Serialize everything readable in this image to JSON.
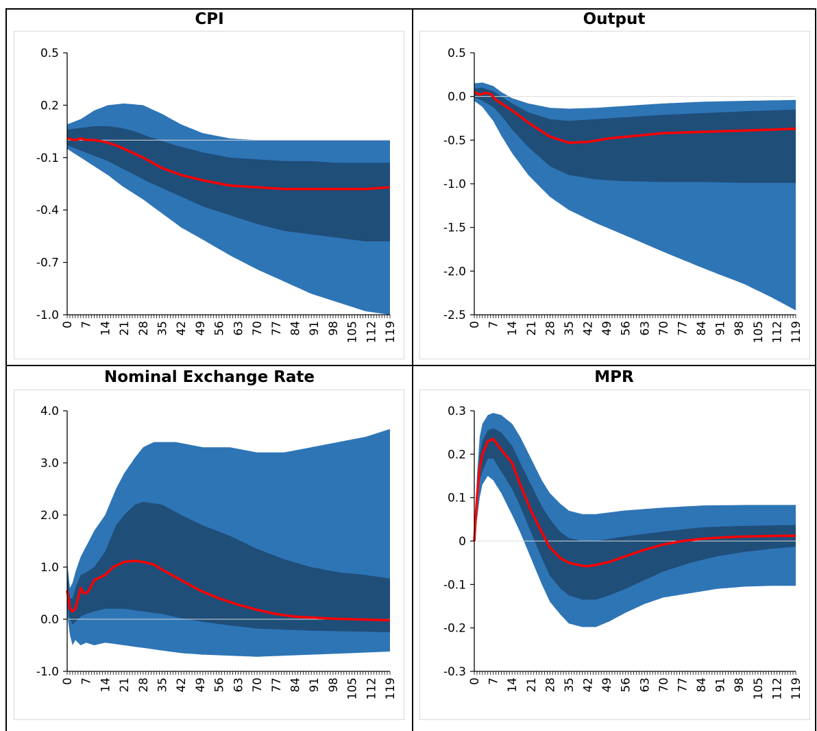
{
  "panels_layout": "2x2 table",
  "colors": {
    "outer_band": "#2e75b6",
    "inner_band": "#1f4e79",
    "median_line": "#ff0000",
    "zero_line": "#d9d9d9"
  },
  "chart_data": [
    {
      "type": "area",
      "title": "CPI",
      "xlabel": "",
      "ylabel": "",
      "x_range": [
        0,
        119
      ],
      "x_ticks": [
        0,
        7,
        14,
        21,
        28,
        35,
        42,
        49,
        56,
        63,
        70,
        77,
        84,
        91,
        98,
        105,
        112,
        119
      ],
      "ylim": [
        -1.0,
        0.5
      ],
      "y_ticks": [
        -1.0,
        -0.7,
        -0.4,
        -0.1,
        0.2,
        0.5
      ],
      "y_tick_labels": [
        "-1.0",
        "-0.7",
        "-0.4",
        "-0.1",
        "0.2",
        "0.5"
      ],
      "grid": false,
      "series": [
        {
          "role": "outer_upper",
          "x": [
            0,
            5,
            10,
            15,
            21,
            28,
            35,
            42,
            50,
            60,
            70,
            80,
            90,
            100,
            110,
            119
          ],
          "values": [
            0.09,
            0.12,
            0.17,
            0.2,
            0.21,
            0.2,
            0.15,
            0.09,
            0.04,
            0.01,
            0.0,
            0.0,
            0.0,
            0.0,
            0.0,
            0.0
          ]
        },
        {
          "role": "inner_upper",
          "x": [
            0,
            5,
            10,
            15,
            20,
            25,
            30,
            40,
            50,
            60,
            70,
            80,
            90,
            100,
            110,
            119
          ],
          "values": [
            0.06,
            0.07,
            0.08,
            0.08,
            0.07,
            0.05,
            0.02,
            -0.03,
            -0.07,
            -0.1,
            -0.11,
            -0.12,
            -0.12,
            -0.13,
            -0.13,
            -0.13
          ]
        },
        {
          "role": "median",
          "x": [
            0,
            3,
            5,
            7,
            10,
            14,
            18,
            21,
            28,
            35,
            42,
            50,
            60,
            70,
            80,
            90,
            100,
            110,
            119
          ],
          "values": [
            0.01,
            0.0,
            0.01,
            0.0,
            0.0,
            -0.01,
            -0.03,
            -0.05,
            -0.1,
            -0.16,
            -0.2,
            -0.23,
            -0.26,
            -0.27,
            -0.28,
            -0.28,
            -0.28,
            -0.28,
            -0.27
          ]
        },
        {
          "role": "inner_lower",
          "x": [
            0,
            5,
            10,
            15,
            20,
            25,
            30,
            40,
            50,
            60,
            70,
            80,
            90,
            100,
            110,
            119
          ],
          "values": [
            -0.03,
            -0.06,
            -0.09,
            -0.12,
            -0.16,
            -0.2,
            -0.24,
            -0.31,
            -0.38,
            -0.43,
            -0.48,
            -0.52,
            -0.54,
            -0.56,
            -0.58,
            -0.58
          ]
        },
        {
          "role": "outer_lower",
          "x": [
            0,
            5,
            10,
            15,
            20,
            28,
            35,
            42,
            50,
            60,
            70,
            80,
            90,
            100,
            110,
            119
          ],
          "values": [
            -0.05,
            -0.1,
            -0.15,
            -0.2,
            -0.26,
            -0.34,
            -0.42,
            -0.5,
            -0.57,
            -0.66,
            -0.74,
            -0.81,
            -0.88,
            -0.93,
            -0.98,
            -1.0
          ]
        }
      ]
    },
    {
      "type": "area",
      "title": "Output",
      "xlabel": "",
      "ylabel": "",
      "x_range": [
        0,
        119
      ],
      "x_ticks": [
        0,
        7,
        14,
        21,
        28,
        35,
        42,
        49,
        56,
        63,
        70,
        77,
        84,
        91,
        98,
        105,
        112,
        119
      ],
      "ylim": [
        -2.5,
        0.5
      ],
      "y_ticks": [
        -2.5,
        -2.0,
        -1.5,
        -1.0,
        -0.5,
        0.0,
        0.5
      ],
      "y_tick_labels": [
        "-2.5",
        "-2.0",
        "-1.5",
        "-1.0",
        "-0.5",
        "0.0",
        "0.5"
      ],
      "grid": false,
      "series": [
        {
          "role": "outer_upper",
          "x": [
            0,
            3,
            7,
            10,
            14,
            20,
            28,
            35,
            45,
            55,
            70,
            85,
            100,
            119
          ],
          "values": [
            0.15,
            0.16,
            0.12,
            0.05,
            -0.02,
            -0.08,
            -0.13,
            -0.14,
            -0.13,
            -0.11,
            -0.08,
            -0.06,
            -0.05,
            -0.04
          ]
        },
        {
          "role": "inner_upper",
          "x": [
            0,
            3,
            7,
            10,
            14,
            20,
            28,
            35,
            45,
            55,
            70,
            85,
            100,
            119
          ],
          "values": [
            0.09,
            0.1,
            0.06,
            0.0,
            -0.08,
            -0.18,
            -0.26,
            -0.28,
            -0.26,
            -0.24,
            -0.21,
            -0.19,
            -0.17,
            -0.15
          ]
        },
        {
          "role": "median",
          "x": [
            0,
            2,
            4,
            6,
            8,
            10,
            14,
            20,
            28,
            35,
            42,
            50,
            60,
            70,
            80,
            90,
            100,
            110,
            119
          ],
          "values": [
            0.05,
            0.02,
            0.04,
            0.03,
            -0.04,
            -0.08,
            -0.16,
            -0.3,
            -0.46,
            -0.53,
            -0.52,
            -0.48,
            -0.45,
            -0.42,
            -0.41,
            -0.4,
            -0.39,
            -0.38,
            -0.37
          ]
        },
        {
          "role": "inner_lower",
          "x": [
            0,
            3,
            7,
            10,
            14,
            20,
            28,
            35,
            45,
            55,
            70,
            85,
            100,
            119
          ],
          "values": [
            -0.01,
            -0.05,
            -0.12,
            -0.22,
            -0.38,
            -0.58,
            -0.8,
            -0.9,
            -0.95,
            -0.97,
            -0.98,
            -0.98,
            -0.99,
            -0.99
          ]
        },
        {
          "role": "outer_lower",
          "x": [
            0,
            3,
            7,
            10,
            14,
            20,
            28,
            35,
            45,
            55,
            70,
            85,
            100,
            110,
            119
          ],
          "values": [
            -0.05,
            -0.12,
            -0.28,
            -0.45,
            -0.65,
            -0.9,
            -1.15,
            -1.3,
            -1.45,
            -1.58,
            -1.78,
            -1.97,
            -2.15,
            -2.3,
            -2.45
          ]
        }
      ]
    },
    {
      "type": "area",
      "title": "Nominal Exchange Rate",
      "xlabel": "",
      "ylabel": "",
      "x_range": [
        0,
        119
      ],
      "x_ticks": [
        0,
        7,
        14,
        21,
        28,
        35,
        42,
        49,
        56,
        63,
        70,
        77,
        84,
        91,
        98,
        105,
        112,
        119
      ],
      "ylim": [
        -1.0,
        4.0
      ],
      "y_ticks": [
        -1.0,
        0.0,
        1.0,
        2.0,
        3.0,
        4.0
      ],
      "y_tick_labels": [
        "-1.0",
        "0.0",
        "1.0",
        "2.0",
        "3.0",
        "4.0"
      ],
      "grid": false,
      "series": [
        {
          "role": "outer_upper",
          "x": [
            0,
            1,
            2,
            3,
            5,
            7,
            10,
            14,
            18,
            21,
            25,
            28,
            32,
            35,
            40,
            50,
            60,
            70,
            80,
            90,
            100,
            110,
            119
          ],
          "values": [
            1.1,
            0.6,
            0.7,
            0.9,
            1.2,
            1.4,
            1.7,
            2.0,
            2.5,
            2.8,
            3.1,
            3.3,
            3.4,
            3.4,
            3.4,
            3.3,
            3.3,
            3.2,
            3.2,
            3.3,
            3.4,
            3.5,
            3.65
          ]
        },
        {
          "role": "inner_upper",
          "x": [
            0,
            1,
            2,
            3,
            5,
            7,
            10,
            14,
            18,
            21,
            25,
            28,
            35,
            42,
            50,
            60,
            70,
            80,
            90,
            100,
            110,
            119
          ],
          "values": [
            0.9,
            0.4,
            0.4,
            0.6,
            0.85,
            0.9,
            1.0,
            1.3,
            1.8,
            2.0,
            2.2,
            2.25,
            2.2,
            2.0,
            1.8,
            1.6,
            1.35,
            1.15,
            1.0,
            0.9,
            0.85,
            0.78
          ]
        },
        {
          "role": "median",
          "x": [
            0,
            1,
            2,
            3,
            4,
            5,
            6,
            7,
            8,
            10,
            12,
            14,
            17,
            21,
            25,
            28,
            32,
            35,
            42,
            49,
            56,
            63,
            70,
            77,
            84,
            91,
            98,
            105,
            112,
            119
          ],
          "values": [
            0.55,
            0.2,
            0.15,
            0.2,
            0.4,
            0.6,
            0.5,
            0.5,
            0.55,
            0.75,
            0.8,
            0.85,
            1.0,
            1.1,
            1.12,
            1.1,
            1.05,
            0.95,
            0.75,
            0.55,
            0.4,
            0.28,
            0.18,
            0.1,
            0.05,
            0.03,
            0.01,
            0.0,
            -0.01,
            -0.02
          ]
        },
        {
          "role": "inner_lower",
          "x": [
            0,
            1,
            2,
            3,
            5,
            7,
            10,
            14,
            21,
            28,
            35,
            42,
            50,
            60,
            70,
            80,
            90,
            100,
            110,
            119
          ],
          "values": [
            0.3,
            0.0,
            -0.1,
            -0.05,
            0.05,
            0.1,
            0.15,
            0.2,
            0.2,
            0.15,
            0.1,
            0.02,
            -0.05,
            -0.12,
            -0.18,
            -0.2,
            -0.22,
            -0.23,
            -0.24,
            -0.25
          ]
        },
        {
          "role": "outer_lower",
          "x": [
            0,
            1,
            2,
            3,
            5,
            7,
            10,
            14,
            21,
            28,
            35,
            42,
            50,
            60,
            70,
            80,
            90,
            100,
            110,
            119
          ],
          "values": [
            0.1,
            -0.3,
            -0.5,
            -0.4,
            -0.5,
            -0.45,
            -0.5,
            -0.45,
            -0.5,
            -0.55,
            -0.6,
            -0.65,
            -0.68,
            -0.7,
            -0.72,
            -0.7,
            -0.68,
            -0.66,
            -0.64,
            -0.62
          ]
        }
      ]
    },
    {
      "type": "area",
      "title": "MPR",
      "xlabel": "",
      "ylabel": "",
      "x_range": [
        0,
        119
      ],
      "x_ticks": [
        0,
        7,
        14,
        21,
        28,
        35,
        42,
        49,
        56,
        63,
        70,
        77,
        84,
        91,
        98,
        105,
        112,
        119
      ],
      "ylim": [
        -0.3,
        0.3
      ],
      "y_ticks": [
        -0.3,
        -0.2,
        -0.1,
        0,
        0.1,
        0.2,
        0.3
      ],
      "y_tick_labels": [
        "-0.3",
        "-0.2",
        "-0.1",
        "0",
        "0.1",
        "0.2",
        "0.3"
      ],
      "grid": false,
      "series": [
        {
          "role": "outer_upper",
          "x": [
            0,
            1,
            2,
            3,
            5,
            7,
            10,
            14,
            17,
            21,
            25,
            28,
            32,
            35,
            40,
            45,
            55,
            70,
            85,
            100,
            119
          ],
          "values": [
            0.0,
            0.15,
            0.24,
            0.27,
            0.29,
            0.295,
            0.29,
            0.27,
            0.24,
            0.19,
            0.14,
            0.11,
            0.085,
            0.07,
            0.062,
            0.062,
            0.07,
            0.077,
            0.082,
            0.083,
            0.083
          ]
        },
        {
          "role": "inner_upper",
          "x": [
            0,
            1,
            2,
            3,
            5,
            7,
            10,
            14,
            17,
            21,
            25,
            28,
            32,
            35,
            40,
            45,
            55,
            70,
            85,
            100,
            119
          ],
          "values": [
            0.0,
            0.12,
            0.2,
            0.23,
            0.255,
            0.26,
            0.25,
            0.22,
            0.18,
            0.13,
            0.08,
            0.05,
            0.02,
            0.007,
            0.0,
            0.0,
            0.01,
            0.022,
            0.032,
            0.035,
            0.037
          ]
        },
        {
          "role": "median",
          "x": [
            0,
            1,
            2,
            3,
            5,
            7,
            10,
            14,
            17,
            21,
            25,
            28,
            32,
            35,
            40,
            42,
            45,
            50,
            56,
            63,
            70,
            77,
            84,
            91,
            98,
            105,
            112,
            119
          ],
          "values": [
            0.0,
            0.1,
            0.17,
            0.2,
            0.23,
            0.235,
            0.21,
            0.18,
            0.13,
            0.07,
            0.02,
            -0.015,
            -0.04,
            -0.05,
            -0.057,
            -0.058,
            -0.055,
            -0.048,
            -0.035,
            -0.02,
            -0.008,
            0.0,
            0.005,
            0.008,
            0.01,
            0.011,
            0.012,
            0.012
          ]
        },
        {
          "role": "inner_lower",
          "x": [
            0,
            1,
            2,
            3,
            5,
            7,
            10,
            14,
            17,
            21,
            25,
            28,
            32,
            35,
            40,
            45,
            50,
            56,
            63,
            70,
            80,
            90,
            100,
            110,
            119
          ],
          "values": [
            0.0,
            0.08,
            0.14,
            0.16,
            0.19,
            0.19,
            0.16,
            0.12,
            0.08,
            0.02,
            -0.04,
            -0.08,
            -0.11,
            -0.125,
            -0.135,
            -0.135,
            -0.125,
            -0.11,
            -0.09,
            -0.07,
            -0.05,
            -0.035,
            -0.025,
            -0.018,
            -0.013
          ]
        },
        {
          "role": "outer_lower",
          "x": [
            0,
            1,
            2,
            3,
            5,
            7,
            10,
            14,
            17,
            21,
            25,
            28,
            32,
            35,
            40,
            45,
            50,
            56,
            63,
            70,
            80,
            90,
            100,
            110,
            119
          ],
          "values": [
            0.0,
            0.05,
            0.1,
            0.13,
            0.15,
            0.14,
            0.11,
            0.06,
            0.02,
            -0.04,
            -0.1,
            -0.14,
            -0.17,
            -0.19,
            -0.198,
            -0.198,
            -0.185,
            -0.165,
            -0.145,
            -0.13,
            -0.12,
            -0.11,
            -0.105,
            -0.103,
            -0.103
          ]
        }
      ]
    }
  ]
}
